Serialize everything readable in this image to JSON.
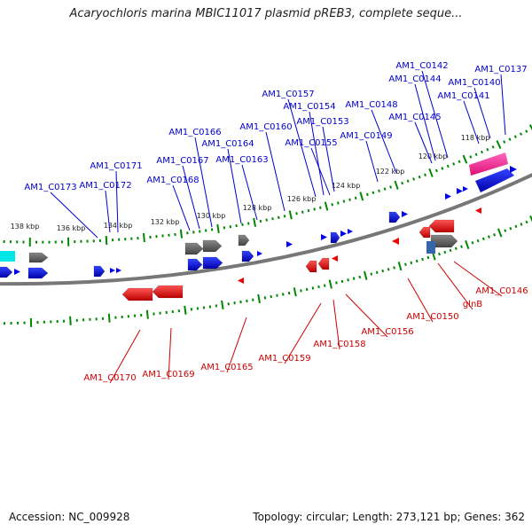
{
  "title": "Acaryochloris marina MBIC11017 plasmid pREB3, complete seque...",
  "footer": {
    "accession": "Accession: NC_009928",
    "summary": "Topology: circular; Length: 273,121 bp; Genes: 362"
  },
  "colors": {
    "plus_label": "#0000cc",
    "minus_label": "#cc0000",
    "plus_gene": "#0000ee",
    "minus_gene": "#ee0000",
    "pseudo_gene": "#555555",
    "rna_gene": "#ff3399",
    "ruler": "#008800",
    "backbone": "#777777",
    "cyan_feature": "#00e5e5"
  },
  "ruler_outer_ticks": [
    "138 kbp",
    "136 kbp",
    "134 kbp",
    "132 kbp",
    "130 kbp",
    "128 kbp",
    "126 kbp",
    "124 kbp",
    "122 kbp",
    "120 kbp",
    "118 kbp"
  ],
  "plus_strand_labels": [
    "AM1_C0173",
    "AM1_C0172",
    "AM1_C0171",
    "AM1_C0168",
    "AM1_C0167",
    "AM1_C0166",
    "AM1_C0164",
    "AM1_C0163",
    "AM1_C0160",
    "AM1_C0157",
    "AM1_C0154",
    "AM1_C0153",
    "AM1_C0155",
    "AM1_C0149",
    "AM1_C0148",
    "AM1_C0145",
    "AM1_C0142",
    "AM1_C0144",
    "AM1_C0141",
    "AM1_C0140",
    "AM1_C0137"
  ],
  "minus_strand_labels": [
    "AM1_C0170",
    "AM1_C0169",
    "AM1_C0165",
    "AM1_C0159",
    "AM1_C0158",
    "AM1_C0156",
    "AM1_C0150",
    "glnB",
    "AM1_C0146"
  ]
}
